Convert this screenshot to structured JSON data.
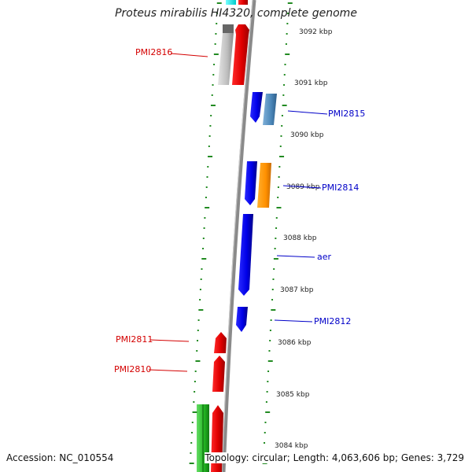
{
  "title": "Proteus mirabilis HI4320, complete genome",
  "accession": "Accession: NC_010554",
  "topology": "Topology: circular; Length: 4,063,606 bp; Genes: 3,729",
  "colors": {
    "backbone": "#8a8a8a",
    "tick": "#228b22",
    "label_red": "#d40000",
    "label_blue": "#0000c8"
  },
  "kbp_ticks": [
    {
      "label": "3092 kbp"
    },
    {
      "label": "3091 kbp"
    },
    {
      "label": "3090 kbp"
    },
    {
      "label": "3089 kbp"
    },
    {
      "label": "3088 kbp"
    },
    {
      "label": "3087 kbp"
    },
    {
      "label": "3086 kbp"
    },
    {
      "label": "3085 kbp"
    },
    {
      "label": "3084 kbp"
    }
  ],
  "gene_labels": [
    {
      "name": "PMI2816",
      "color": "#d40000"
    },
    {
      "name": "PMI2815",
      "color": "#0000c8"
    },
    {
      "name": "PMI2814",
      "color": "#0000c8"
    },
    {
      "name": "aer",
      "color": "#0000c8"
    },
    {
      "name": "PMI2812",
      "color": "#0000c8"
    },
    {
      "name": "PMI2811",
      "color": "#d40000"
    },
    {
      "name": "PMI2810",
      "color": "#d40000"
    }
  ]
}
